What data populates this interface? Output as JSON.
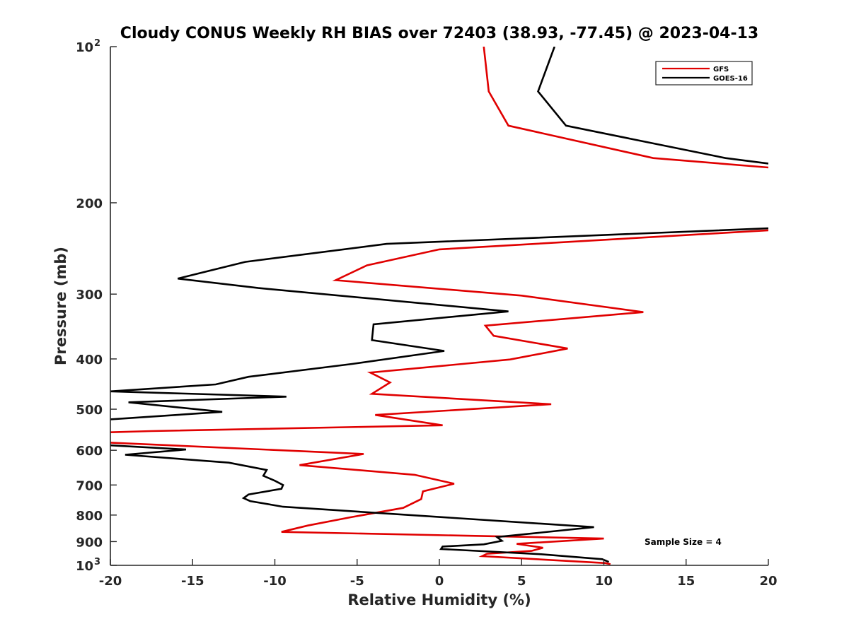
{
  "chart_data": {
    "type": "line",
    "title": "Cloudy CONUS Weekly RH BIAS over 72403 (38.93, -77.45) @ 2023-04-13",
    "xlabel": "Relative Humidity (%)",
    "ylabel": "Pressure (mb)",
    "xlim": [
      -20,
      20
    ],
    "ylim": [
      100,
      1000
    ],
    "yscale": "log",
    "y_reversed": true,
    "grid": false,
    "legend_position": "top-right",
    "annotation": "Sample Size = 4",
    "x_ticks": [
      "-20",
      "-15",
      "-10",
      "-5",
      "0",
      "5",
      "10",
      "15",
      "20"
    ],
    "x_tick_values": [
      -20,
      -15,
      -10,
      -5,
      0,
      5,
      10,
      15,
      20
    ],
    "y_ticks": [
      {
        "value": 100,
        "base": "10",
        "exp": "2"
      },
      {
        "value": 200,
        "label": "200"
      },
      {
        "value": 300,
        "label": "300"
      },
      {
        "value": 400,
        "label": "400"
      },
      {
        "value": 500,
        "label": "500"
      },
      {
        "value": 600,
        "label": "600"
      },
      {
        "value": 700,
        "label": "700"
      },
      {
        "value": 800,
        "label": "800"
      },
      {
        "value": 900,
        "label": "900"
      },
      {
        "value": 1000,
        "base": "10",
        "exp": "3"
      }
    ],
    "series": [
      {
        "name": "GFS",
        "color": "#e00000",
        "segments": [
          [
            [
              2.7,
              100
            ],
            [
              3.0,
              122
            ],
            [
              4.2,
              142
            ],
            [
              13.0,
              164
            ],
            [
              20.0,
              171
            ]
          ],
          [
            [
              20.0,
              226
            ],
            [
              0.0,
              246
            ],
            [
              -4.4,
              264
            ],
            [
              -6.3,
              282
            ],
            [
              5.0,
              302
            ],
            [
              12.4,
              325
            ],
            [
              2.8,
              345
            ],
            [
              3.3,
              361
            ],
            [
              7.8,
              382
            ],
            [
              4.3,
              401
            ],
            [
              -4.2,
              425
            ],
            [
              -3.0,
              444
            ],
            [
              -4.1,
              467
            ],
            [
              6.8,
              489
            ],
            [
              -3.9,
              513
            ],
            [
              0.2,
              537
            ],
            [
              -17.5,
              551
            ],
            [
              -20.0,
              554
            ]
          ],
          [
            [
              -20.0,
              580
            ],
            [
              -4.6,
              610
            ],
            [
              -8.5,
              641
            ],
            [
              -1.5,
              669
            ],
            [
              0.9,
              696
            ],
            [
              -1.0,
              720
            ],
            [
              -1.1,
              745
            ],
            [
              -2.2,
              775
            ],
            [
              -5.4,
              808
            ],
            [
              -8.0,
              838
            ],
            [
              -9.6,
              862
            ],
            [
              10.0,
              888
            ],
            [
              4.7,
              909
            ],
            [
              6.3,
              925
            ],
            [
              5.6,
              938
            ],
            [
              2.9,
              950
            ],
            [
              2.6,
              960
            ],
            [
              10.1,
              990
            ],
            [
              10.4,
              995
            ]
          ]
        ]
      },
      {
        "name": "GOES-16",
        "color": "#000000",
        "segments": [
          [
            [
              7.0,
              100
            ],
            [
              6.0,
              122
            ],
            [
              7.7,
              142
            ],
            [
              17.4,
              164
            ],
            [
              20.0,
              168
            ]
          ],
          [
            [
              20.0,
              224
            ],
            [
              -3.2,
              240
            ],
            [
              -11.8,
              260
            ],
            [
              -15.9,
              280
            ],
            [
              -11.0,
              292
            ],
            [
              4.2,
              324
            ],
            [
              -4.0,
              343
            ],
            [
              -4.1,
              368
            ],
            [
              0.3,
              386
            ],
            [
              -5.3,
              409
            ],
            [
              -11.6,
              433
            ],
            [
              -13.6,
              448
            ],
            [
              -20.0,
              462
            ]
          ],
          [
            [
              -20.0,
              462
            ],
            [
              -9.3,
              473
            ],
            [
              -18.9,
              485
            ],
            [
              -13.2,
              506
            ],
            [
              -20.0,
              523
            ]
          ],
          [
            [
              -20.0,
              587
            ],
            [
              -15.4,
              598
            ],
            [
              -19.1,
              612
            ],
            [
              -12.8,
              634
            ],
            [
              -10.5,
              655
            ],
            [
              -10.7,
              672
            ],
            [
              -10.0,
              687
            ],
            [
              -9.5,
              700
            ],
            [
              -9.6,
              712
            ],
            [
              -11.6,
              730
            ],
            [
              -11.9,
              742
            ],
            [
              -11.5,
              752
            ],
            [
              -9.5,
              771
            ],
            [
              9.4,
              844
            ],
            [
              3.5,
              882
            ],
            [
              3.8,
              897
            ],
            [
              2.7,
              911
            ],
            [
              0.2,
              920
            ],
            [
              0.1,
              930
            ],
            [
              6.2,
              952
            ],
            [
              9.9,
              973
            ],
            [
              10.3,
              985
            ]
          ]
        ]
      }
    ]
  }
}
